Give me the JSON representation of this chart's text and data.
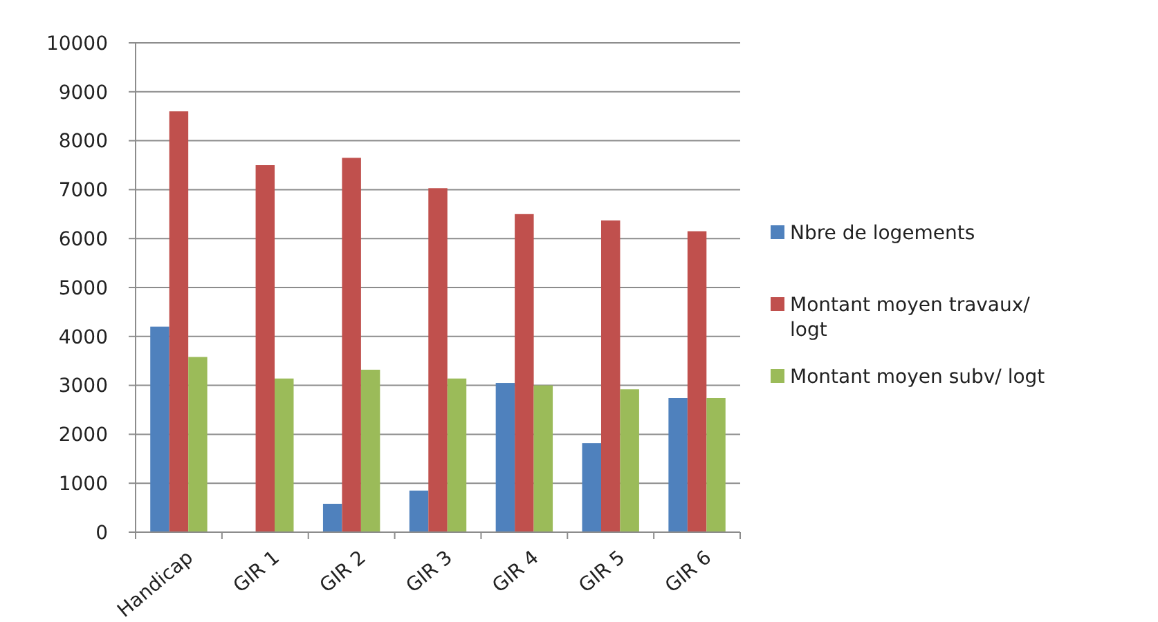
{
  "chart_data": {
    "type": "bar",
    "categories": [
      "Handicap",
      "GIR 1",
      "GIR 2",
      "GIR 3",
      "GIR 4",
      "GIR 5",
      "GIR 6"
    ],
    "series": [
      {
        "name": "Nbre de logements",
        "color": "#4f81bd",
        "values": [
          4200,
          0,
          580,
          850,
          3050,
          1820,
          2740
        ]
      },
      {
        "name": "Montant moyen travaux/ logt",
        "color": "#c0504d",
        "values": [
          8600,
          7500,
          7650,
          7030,
          6500,
          6370,
          6150
        ]
      },
      {
        "name": "Montant moyen subv/ logt",
        "color": "#9bbb59",
        "values": [
          3580,
          3140,
          3320,
          3140,
          3000,
          2920,
          2740
        ]
      }
    ],
    "ylim": [
      0,
      10000
    ],
    "yticks": [
      0,
      1000,
      2000,
      3000,
      4000,
      5000,
      6000,
      7000,
      8000,
      9000,
      10000
    ],
    "grid": "y",
    "legend": "right"
  }
}
